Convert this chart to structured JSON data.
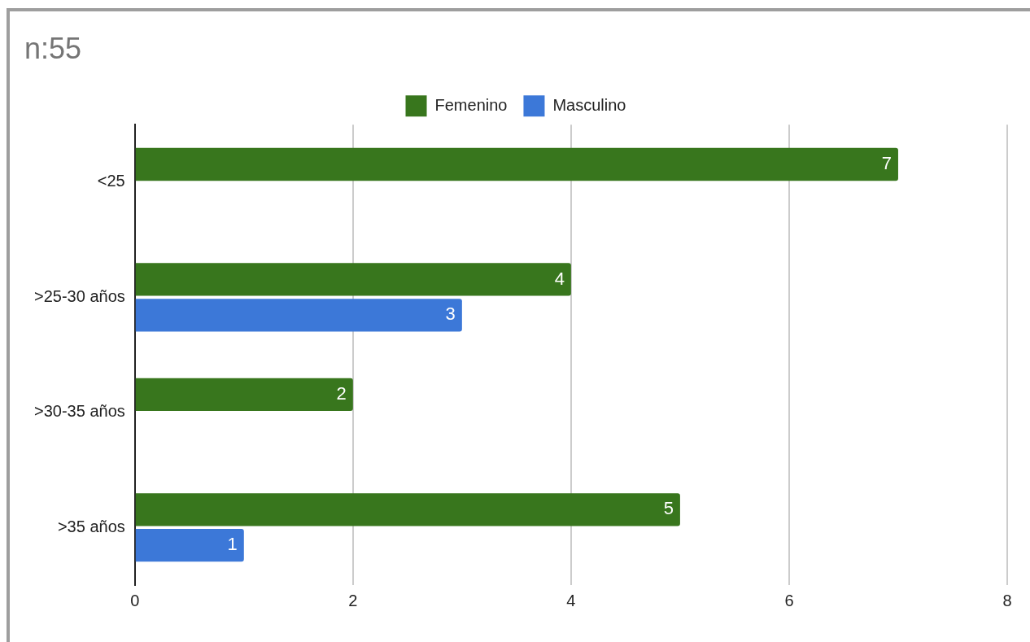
{
  "chart_data": {
    "type": "bar",
    "orientation": "horizontal",
    "title": "n:55",
    "categories": [
      "<25",
      ">25-30 años",
      ">30-35 años",
      ">35 años"
    ],
    "series": [
      {
        "name": "Femenino",
        "color": "#38761d",
        "values": [
          7,
          4,
          2,
          5
        ]
      },
      {
        "name": "Masculino",
        "color": "#3c78d8",
        "values": [
          null,
          3,
          null,
          1
        ]
      }
    ],
    "xlim": [
      0,
      8
    ],
    "xticks": [
      0,
      2,
      4,
      6,
      8
    ],
    "grid": "x",
    "legend": "top",
    "data_labels": true
  }
}
